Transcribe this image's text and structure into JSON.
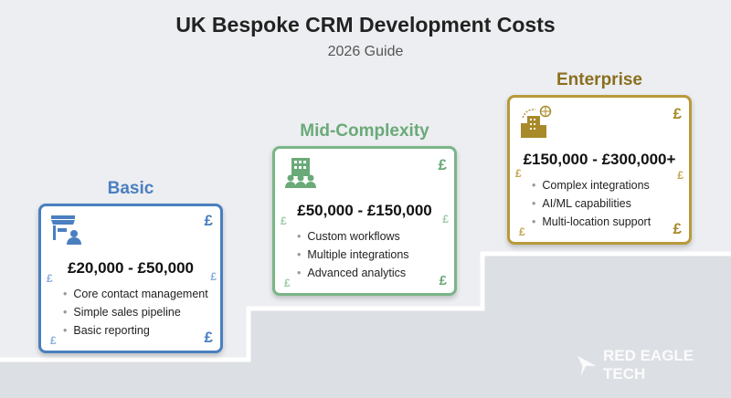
{
  "header": {
    "title": "UK Bespoke CRM Development Costs",
    "subtitle": "2026 Guide"
  },
  "colors": {
    "basic": "#4a7fc0",
    "mid": "#6aaa78",
    "enterprise": "#a88a2a"
  },
  "tiers": [
    {
      "name": "Basic",
      "price": "£20,000 - £50,000",
      "icon": "storefront-user-icon",
      "features": [
        "Core contact management",
        "Simple sales pipeline",
        "Basic reporting"
      ]
    },
    {
      "name": "Mid-Complexity",
      "price": "£50,000 - £150,000",
      "icon": "office-team-icon",
      "features": [
        "Custom workflows",
        "Multiple integrations",
        "Advanced analytics"
      ]
    },
    {
      "name": "Enterprise",
      "price": "£150,000 - £300,000+",
      "icon": "building-globe-icon",
      "features": [
        "Complex integrations",
        "AI/ML capabilities",
        "Multi-location support"
      ]
    }
  ],
  "currency_symbol": "£",
  "logo": {
    "text": "RED EAGLE TECH"
  }
}
